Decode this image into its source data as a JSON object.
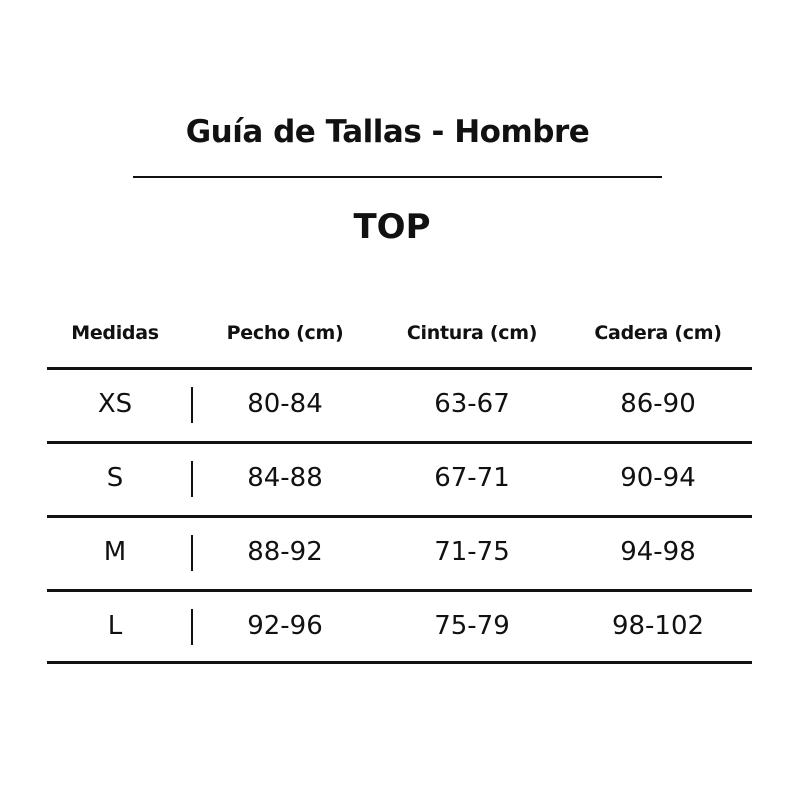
{
  "title": "Guía de Tallas - Hombre",
  "subtitle": "TOP",
  "table": {
    "headers": [
      "Medidas",
      "Pecho (cm)",
      "Cintura (cm)",
      "Cadera (cm)"
    ],
    "rows": [
      [
        "XS",
        "80-84",
        "63-67",
        "86-90"
      ],
      [
        "S",
        "84-88",
        "67-71",
        "90-94"
      ],
      [
        "M",
        "88-92",
        "71-75",
        "94-98"
      ],
      [
        "L",
        "92-96",
        "75-79",
        "98-102"
      ]
    ]
  }
}
